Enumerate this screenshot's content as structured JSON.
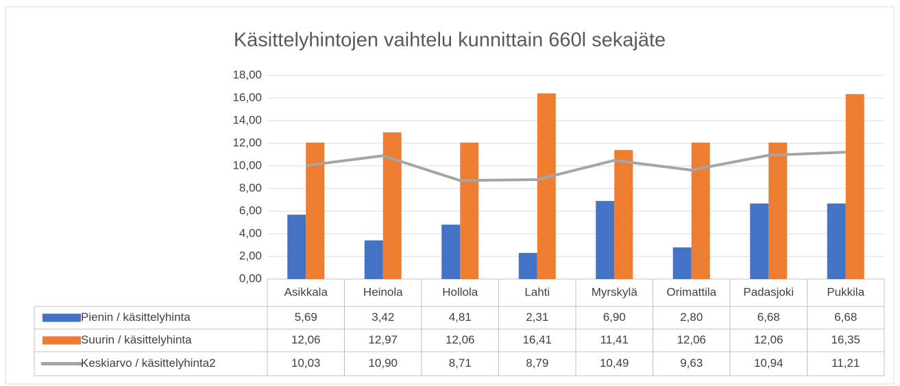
{
  "chart_data": {
    "type": "bar",
    "title": "Käsittelyhintojen vaihtelu kunnittain 660l sekajäte",
    "categories": [
      "Asikkala",
      "Heinola",
      "Hollola",
      "Lahti",
      "Myrskylä",
      "Orimattila",
      "Padasjoki",
      "Pukkila"
    ],
    "series": [
      {
        "name": "Pienin / käsittelyhinta",
        "type": "bar",
        "color": "#4472c4",
        "values": [
          5.69,
          3.42,
          4.81,
          2.31,
          6.9,
          2.8,
          6.68,
          6.68
        ],
        "value_labels": [
          "5,69",
          "3,42",
          "4,81",
          "2,31",
          "6,90",
          "2,80",
          "6,68",
          "6,68"
        ]
      },
      {
        "name": "Suurin / käsittelyhinta",
        "type": "bar",
        "color": "#ed7d31",
        "values": [
          12.06,
          12.97,
          12.06,
          16.41,
          11.41,
          12.06,
          12.06,
          16.35
        ],
        "value_labels": [
          "12,06",
          "12,97",
          "12,06",
          "16,41",
          "11,41",
          "12,06",
          "12,06",
          "16,35"
        ]
      },
      {
        "name": "Keskiarvo / käsittelyhinta2",
        "type": "line",
        "color": "#a5a5a5",
        "values": [
          10.03,
          10.9,
          8.71,
          8.79,
          10.49,
          9.63,
          10.94,
          11.21
        ],
        "value_labels": [
          "10,03",
          "10,90",
          "8,71",
          "8,79",
          "10,49",
          "9,63",
          "10,94",
          "11,21"
        ]
      }
    ],
    "ylim": [
      0,
      18
    ],
    "yticks": [
      {
        "value": 0,
        "label": "0,00"
      },
      {
        "value": 2,
        "label": "2,00"
      },
      {
        "value": 4,
        "label": "4,00"
      },
      {
        "value": 6,
        "label": "6,00"
      },
      {
        "value": 8,
        "label": "8,00"
      },
      {
        "value": 10,
        "label": "10,00"
      },
      {
        "value": 12,
        "label": "12,00"
      },
      {
        "value": 14,
        "label": "14,00"
      },
      {
        "value": 16,
        "label": "16,00"
      },
      {
        "value": 18,
        "label": "18,00"
      }
    ],
    "grid": true,
    "legend": "table"
  }
}
